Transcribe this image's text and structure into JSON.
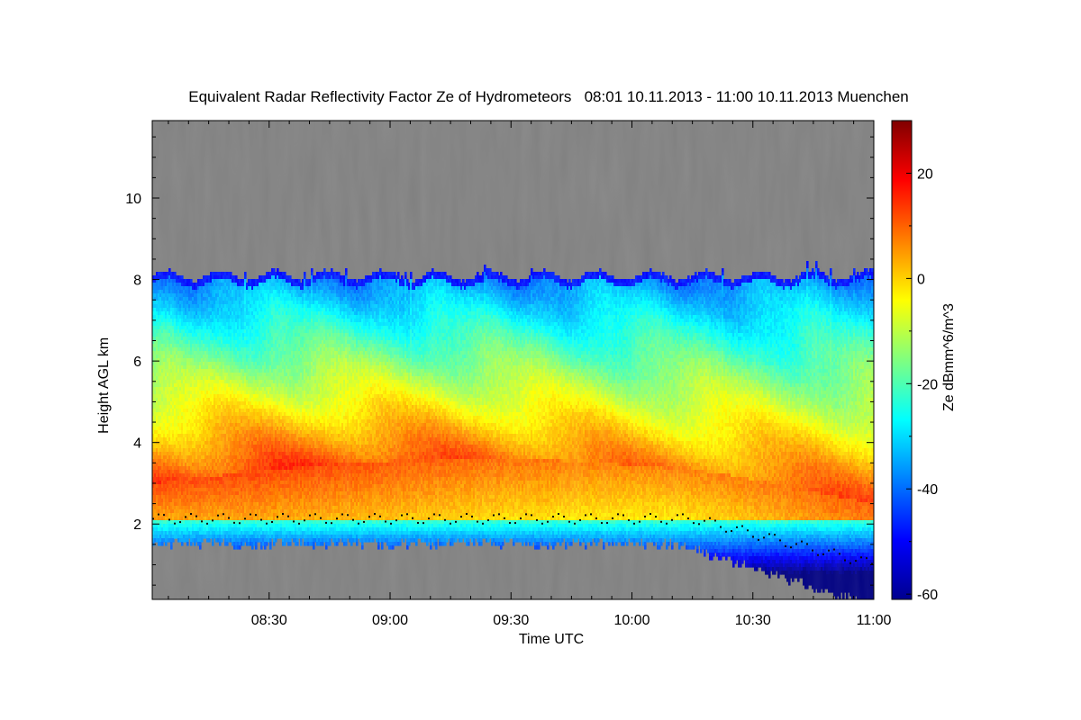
{
  "chart_data": {
    "type": "heatmap",
    "title": "Equivalent Radar Reflectivity Factor Ze of Hydrometeors   08:01 10.11.2013 - 11:00 10.11.2013 Muenchen",
    "xlabel": "Time UTC",
    "ylabel": "Height AGL km",
    "x_tick_labels": [
      "08:30",
      "09:00",
      "09:30",
      "10:00",
      "10:30",
      "11:00"
    ],
    "x_ticks_minutes": [
      30,
      60,
      90,
      120,
      150,
      180
    ],
    "xlim_minutes_after_0800": [
      1,
      180
    ],
    "y_ticks": [
      2,
      4,
      6,
      8,
      10
    ],
    "ylim": [
      0.15,
      11.9
    ],
    "colorbar": {
      "label": "Ze dBmm^6/m^3",
      "ticks": [
        20,
        0,
        -20,
        -40,
        -60
      ],
      "range": [
        -61,
        30
      ],
      "colormap": "jet"
    },
    "background_color": "#808080",
    "profile": {
      "cloud_top_km": 8.1,
      "melting_layer_km": 2.0,
      "max_reflectivity_dbz": 15,
      "max_reflectivity_height_km": 3.0
    }
  }
}
